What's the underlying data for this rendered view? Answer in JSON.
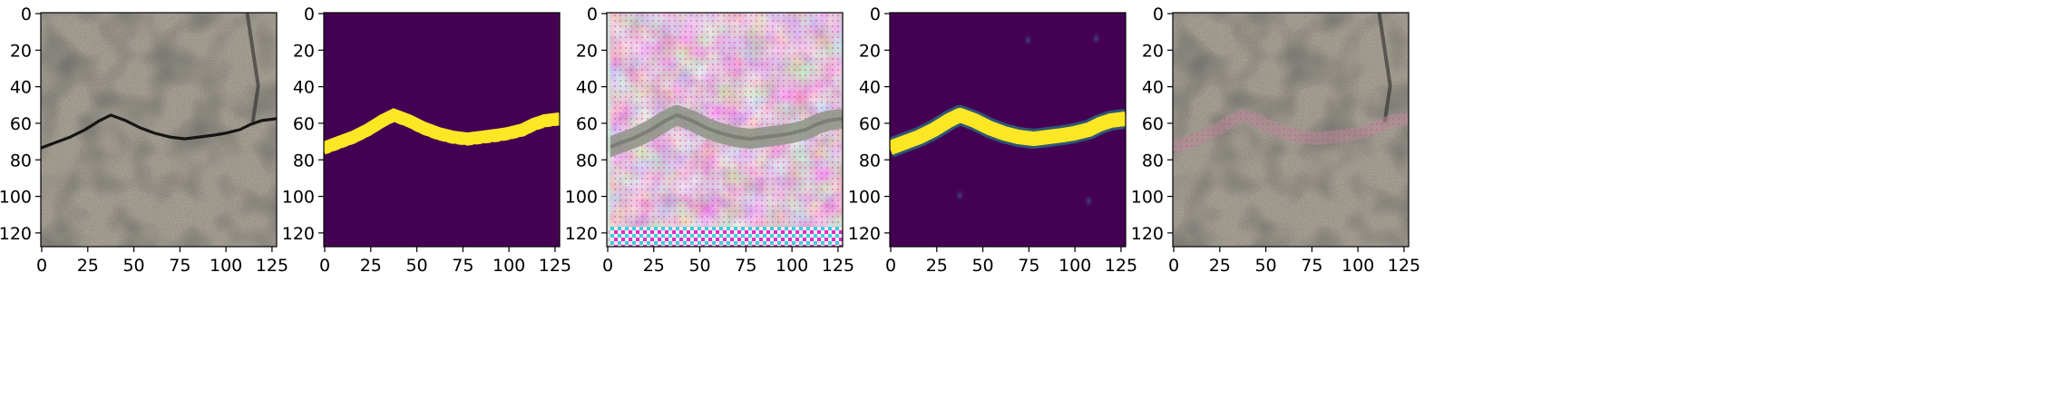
{
  "figure": {
    "panels": [
      {
        "id": "p1",
        "kind": "photo",
        "description": "concrete surface with crack"
      },
      {
        "id": "p2",
        "kind": "mask",
        "description": "binary crack mask"
      },
      {
        "id": "p3",
        "kind": "artifact",
        "description": "pink textured reconstruction"
      },
      {
        "id": "p4",
        "kind": "heatmap",
        "description": "predicted crack probability map"
      },
      {
        "id": "p5",
        "kind": "overlay",
        "description": "photo with faint crack overlay"
      }
    ],
    "x_ticks": [
      "0",
      "25",
      "50",
      "75",
      "100",
      "125"
    ],
    "y_ticks": [
      "0",
      "20",
      "40",
      "60",
      "80",
      "100",
      "120"
    ],
    "axis_range": [
      0,
      128
    ],
    "colors": {
      "viridis_low": "#440154",
      "viridis_high": "#fde725",
      "stone_base": "#b8b1a4",
      "pink_base": "#d7a7c4"
    }
  }
}
